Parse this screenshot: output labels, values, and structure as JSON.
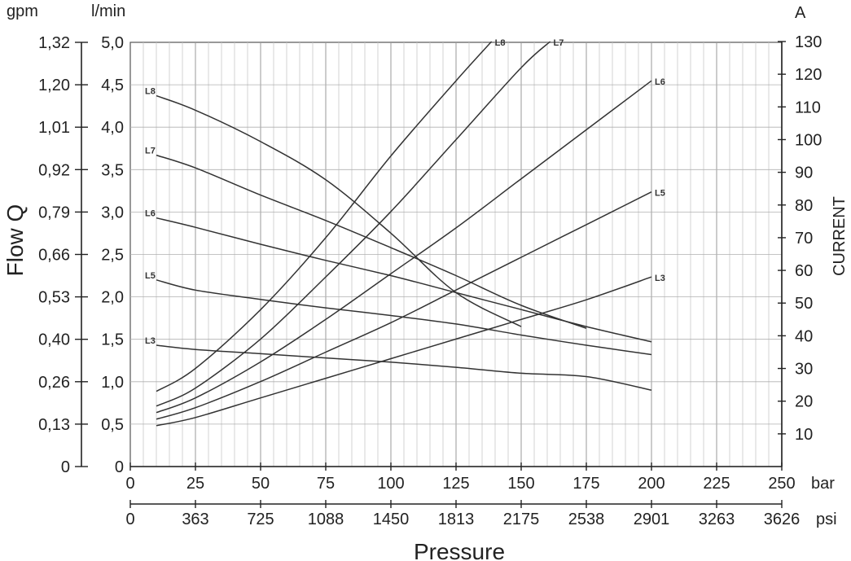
{
  "chart_data": {
    "type": "line",
    "xlabel": "Pressure",
    "ylabel_left": "Flow Q",
    "ylabel_right": "CURRENT",
    "x_unit": "bar",
    "x2_unit": "psi",
    "y_unit": "l/min",
    "y2_unit": "gpm",
    "y3_unit": "A",
    "xlim": [
      0,
      250
    ],
    "ylim": [
      0,
      5.0
    ],
    "y3lim": [
      0,
      130
    ],
    "grid": true,
    "x_ticks": [
      "0",
      "25",
      "50",
      "75",
      "100",
      "125",
      "150",
      "175",
      "200",
      "225",
      "250"
    ],
    "x2_ticks": [
      "0",
      "363",
      "725",
      "1088",
      "1450",
      "1813",
      "2175",
      "2538",
      "2901",
      "3263",
      "3626"
    ],
    "y_ticks": [
      "0",
      "0,5",
      "1,0",
      "1,5",
      "2,0",
      "2,5",
      "3,0",
      "3,5",
      "4,0",
      "4,5",
      "5,0"
    ],
    "y2_ticks": [
      "0",
      "0,13",
      "0,26",
      "0,40",
      "0,53",
      "0,66",
      "0,79",
      "0,92",
      "1,01",
      "1,20",
      "1,32"
    ],
    "y3_ticks": [
      "10",
      "20",
      "30",
      "40",
      "50",
      "60",
      "70",
      "80",
      "90",
      "100",
      "110",
      "120",
      "130"
    ],
    "flow_series": [
      {
        "name": "L8",
        "x": [
          10,
          25,
          50,
          75,
          100,
          125,
          150
        ],
        "y": [
          4.37,
          4.2,
          3.83,
          3.38,
          2.75,
          2.05,
          1.65
        ]
      },
      {
        "name": "L7",
        "x": [
          10,
          25,
          50,
          75,
          100,
          125,
          150,
          175
        ],
        "y": [
          3.67,
          3.52,
          3.2,
          2.9,
          2.58,
          2.25,
          1.9,
          1.63
        ]
      },
      {
        "name": "L6",
        "x": [
          10,
          25,
          50,
          75,
          100,
          125,
          150,
          175,
          200
        ],
        "y": [
          2.93,
          2.82,
          2.62,
          2.43,
          2.25,
          2.05,
          1.85,
          1.65,
          1.47
        ]
      },
      {
        "name": "L5",
        "x": [
          10,
          25,
          50,
          75,
          100,
          125,
          150,
          175,
          200
        ],
        "y": [
          2.2,
          2.08,
          1.97,
          1.87,
          1.78,
          1.68,
          1.55,
          1.43,
          1.32
        ]
      },
      {
        "name": "L3",
        "x": [
          10,
          25,
          50,
          75,
          100,
          125,
          150,
          175,
          200
        ],
        "y": [
          1.43,
          1.38,
          1.33,
          1.28,
          1.23,
          1.17,
          1.1,
          1.06,
          0.9
        ]
      }
    ],
    "current_series": [
      {
        "name": "L8",
        "x": [
          10,
          25,
          50,
          75,
          100,
          125,
          150
        ],
        "y": [
          23,
          30,
          48,
          70,
          95,
          118,
          140
        ]
      },
      {
        "name": "L7",
        "x": [
          10,
          25,
          50,
          75,
          100,
          125,
          150,
          175
        ],
        "y": [
          18.5,
          24,
          39,
          58,
          78,
          100,
          122,
          140
        ]
      },
      {
        "name": "L6",
        "x": [
          10,
          25,
          50,
          75,
          100,
          125,
          150,
          175,
          200
        ],
        "y": [
          16.5,
          21,
          32,
          45,
          59,
          73,
          88,
          103,
          118
        ]
      },
      {
        "name": "L5",
        "x": [
          10,
          25,
          50,
          75,
          100,
          125,
          150,
          175,
          200
        ],
        "y": [
          14.5,
          18,
          26,
          35,
          44,
          54,
          64,
          74,
          84
        ]
      },
      {
        "name": "L3",
        "x": [
          10,
          25,
          50,
          75,
          100,
          125,
          150,
          175,
          200
        ],
        "y": [
          12.5,
          15,
          21,
          27,
          33,
          39,
          45,
          51,
          58
        ]
      }
    ]
  }
}
